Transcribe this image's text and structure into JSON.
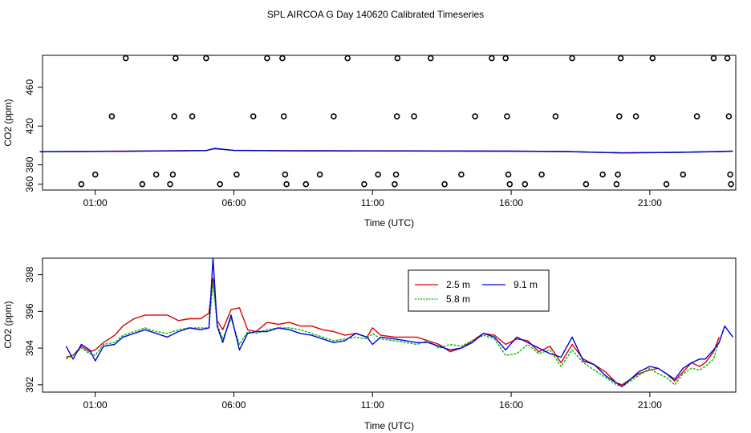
{
  "title": "SPL AIRCOA G  Day 140620  Calibrated Timeseries",
  "colors": {
    "red": "#dd0000",
    "green": "#00bb00",
    "blue": "#0000dd",
    "markers": "#000000"
  },
  "chart_data": [
    {
      "type": "scatter",
      "xlabel": "Time (UTC)",
      "ylabel": "CO2 (ppm)",
      "xlim": [
        -0.9,
        24.1
      ],
      "ylim": [
        354,
        493
      ],
      "xticks": [
        {
          "value": 1,
          "label": "01:00"
        },
        {
          "value": 6,
          "label": "06:00"
        },
        {
          "value": 11,
          "label": "11:00"
        },
        {
          "value": 16,
          "label": "16:00"
        },
        {
          "value": 21,
          "label": "21:00"
        }
      ],
      "yticks": [
        {
          "value": 380,
          "label": "380"
        },
        {
          "value": 420,
          "label": "420"
        },
        {
          "value": 460,
          "label": "460"
        },
        {
          "value": 360,
          "label": "360"
        }
      ],
      "markers": [
        {
          "x": 0.5,
          "y": 360
        },
        {
          "x": 1.0,
          "y": 370
        },
        {
          "x": 1.6,
          "y": 430
        },
        {
          "x": 2.1,
          "y": 490
        },
        {
          "x": 2.7,
          "y": 360
        },
        {
          "x": 3.2,
          "y": 370
        },
        {
          "x": 3.7,
          "y": 360
        },
        {
          "x": 3.8,
          "y": 370
        },
        {
          "x": 3.85,
          "y": 430
        },
        {
          "x": 3.9,
          "y": 490
        },
        {
          "x": 4.5,
          "y": 430
        },
        {
          "x": 5.0,
          "y": 490
        },
        {
          "x": 5.5,
          "y": 360
        },
        {
          "x": 6.1,
          "y": 370
        },
        {
          "x": 6.7,
          "y": 430
        },
        {
          "x": 7.2,
          "y": 490
        },
        {
          "x": 7.75,
          "y": 490
        },
        {
          "x": 7.8,
          "y": 430
        },
        {
          "x": 7.85,
          "y": 370
        },
        {
          "x": 7.9,
          "y": 360
        },
        {
          "x": 8.6,
          "y": 360
        },
        {
          "x": 9.1,
          "y": 370
        },
        {
          "x": 9.6,
          "y": 430
        },
        {
          "x": 10.1,
          "y": 490
        },
        {
          "x": 10.7,
          "y": 360
        },
        {
          "x": 11.2,
          "y": 370
        },
        {
          "x": 11.8,
          "y": 360
        },
        {
          "x": 11.85,
          "y": 370
        },
        {
          "x": 11.88,
          "y": 430
        },
        {
          "x": 11.9,
          "y": 490
        },
        {
          "x": 12.5,
          "y": 430
        },
        {
          "x": 13.1,
          "y": 490
        },
        {
          "x": 13.6,
          "y": 360
        },
        {
          "x": 14.2,
          "y": 370
        },
        {
          "x": 14.7,
          "y": 430
        },
        {
          "x": 15.3,
          "y": 490
        },
        {
          "x": 15.8,
          "y": 490
        },
        {
          "x": 15.85,
          "y": 430
        },
        {
          "x": 15.9,
          "y": 370
        },
        {
          "x": 15.95,
          "y": 360
        },
        {
          "x": 16.5,
          "y": 360
        },
        {
          "x": 17.1,
          "y": 370
        },
        {
          "x": 17.6,
          "y": 430
        },
        {
          "x": 18.2,
          "y": 490
        },
        {
          "x": 18.7,
          "y": 360
        },
        {
          "x": 19.3,
          "y": 370
        },
        {
          "x": 19.8,
          "y": 360
        },
        {
          "x": 19.85,
          "y": 370
        },
        {
          "x": 19.9,
          "y": 430
        },
        {
          "x": 19.95,
          "y": 490
        },
        {
          "x": 20.5,
          "y": 430
        },
        {
          "x": 21.1,
          "y": 490
        },
        {
          "x": 21.6,
          "y": 360
        },
        {
          "x": 22.2,
          "y": 370
        },
        {
          "x": 22.7,
          "y": 430
        },
        {
          "x": 23.3,
          "y": 490
        },
        {
          "x": 23.8,
          "y": 490
        },
        {
          "x": 23.85,
          "y": 430
        },
        {
          "x": 23.9,
          "y": 370
        },
        {
          "x": 23.93,
          "y": 360
        }
      ],
      "series": [
        {
          "color": "red",
          "x": [
            -1,
            2,
            4,
            5,
            5.3,
            6,
            8,
            12,
            16,
            18,
            20,
            22,
            23.5,
            24
          ],
          "y": [
            393.5,
            394.2,
            394.6,
            394.8,
            396.5,
            395.0,
            394.6,
            394.5,
            394.2,
            393.8,
            392.4,
            393.0,
            393.8,
            394.2
          ]
        },
        {
          "color": "green",
          "x": [
            -1,
            2,
            4,
            5,
            5.3,
            6,
            8,
            12,
            16,
            18,
            20,
            22,
            23.5,
            24
          ],
          "y": [
            393.4,
            394.0,
            394.4,
            394.6,
            396.8,
            394.8,
            394.4,
            394.2,
            394.0,
            393.6,
            392.2,
            392.8,
            393.6,
            394.0
          ]
        },
        {
          "color": "blue",
          "x": [
            -1,
            2,
            4,
            5,
            5.3,
            6,
            8,
            12,
            16,
            18,
            20,
            22,
            23.5,
            24
          ],
          "y": [
            393.6,
            394.0,
            394.5,
            394.7,
            397.0,
            394.9,
            394.5,
            394.3,
            394.1,
            393.7,
            392.3,
            392.9,
            393.7,
            394.1
          ]
        }
      ]
    },
    {
      "type": "line",
      "xlabel": "Time (UTC)",
      "ylabel": "CO2 (ppm)",
      "xlim": [
        -0.9,
        24.1
      ],
      "ylim": [
        391.6,
        398.9
      ],
      "xticks": [
        {
          "value": 1,
          "label": "01:00"
        },
        {
          "value": 6,
          "label": "06:00"
        },
        {
          "value": 11,
          "label": "11:00"
        },
        {
          "value": 16,
          "label": "16:00"
        },
        {
          "value": 21,
          "label": "21:00"
        }
      ],
      "yticks": [
        {
          "value": 392,
          "label": "392"
        },
        {
          "value": 394,
          "label": "394"
        },
        {
          "value": 396,
          "label": "396"
        },
        {
          "value": 398,
          "label": "398"
        }
      ],
      "legend": "top-right",
      "series": [
        {
          "name": "2.5 m",
          "color": "red",
          "x": [
            -0.05,
            0.2,
            0.5,
            0.8,
            1.0,
            1.3,
            1.7,
            2.0,
            2.4,
            2.8,
            3.2,
            3.6,
            4.0,
            4.4,
            4.8,
            5.1,
            5.25,
            5.4,
            5.6,
            5.9,
            6.2,
            6.5,
            6.8,
            7.2,
            7.6,
            8.0,
            8.4,
            8.8,
            9.2,
            9.6,
            10.0,
            10.4,
            10.8,
            11.0,
            11.3,
            11.8,
            12.2,
            12.6,
            13.0,
            13.4,
            13.8,
            14.2,
            14.6,
            15.0,
            15.4,
            15.8,
            16.2,
            16.6,
            17.0,
            17.4,
            17.8,
            18.2,
            18.6,
            19.0,
            19.4,
            19.8,
            20.0,
            20.3,
            20.6,
            21.0,
            21.3,
            21.6,
            21.9,
            22.2,
            22.5,
            22.8,
            23.0,
            23.3,
            23.5
          ],
          "y": [
            393.5,
            393.6,
            394.1,
            393.8,
            393.9,
            394.3,
            394.7,
            395.2,
            395.6,
            395.8,
            395.8,
            395.8,
            395.5,
            395.6,
            395.6,
            395.9,
            397.8,
            395.5,
            395.0,
            396.1,
            396.2,
            395.0,
            394.9,
            395.4,
            395.3,
            395.4,
            395.2,
            395.2,
            395.0,
            394.9,
            394.7,
            394.8,
            394.6,
            395.1,
            394.7,
            394.6,
            394.6,
            394.6,
            394.4,
            394.2,
            393.8,
            394.0,
            394.4,
            394.8,
            394.7,
            394.2,
            394.5,
            394.4,
            393.8,
            394.1,
            393.2,
            394.2,
            393.4,
            393.1,
            392.7,
            392.1,
            392.0,
            392.3,
            392.6,
            392.8,
            392.9,
            392.6,
            392.2,
            392.7,
            393.2,
            393.0,
            393.2,
            393.8,
            394.6
          ]
        },
        {
          "name": "5.8 m",
          "color": "green",
          "x": [
            -0.05,
            0.2,
            0.5,
            0.8,
            1.0,
            1.3,
            1.7,
            2.0,
            2.4,
            2.8,
            3.2,
            3.6,
            4.0,
            4.4,
            4.8,
            5.1,
            5.25,
            5.4,
            5.6,
            5.9,
            6.2,
            6.5,
            6.8,
            7.2,
            7.6,
            8.0,
            8.4,
            8.8,
            9.2,
            9.6,
            10.0,
            10.4,
            10.8,
            11.0,
            11.3,
            11.8,
            12.2,
            12.6,
            13.0,
            13.4,
            13.8,
            14.2,
            14.6,
            15.0,
            15.4,
            15.8,
            16.2,
            16.6,
            17.0,
            17.4,
            17.8,
            18.2,
            18.6,
            19.0,
            19.4,
            19.8,
            20.0,
            20.3,
            20.6,
            21.0,
            21.3,
            21.6,
            21.9,
            22.2,
            22.5,
            22.8,
            23.0,
            23.3,
            23.5
          ],
          "y": [
            393.4,
            393.6,
            394.0,
            393.7,
            393.6,
            394.2,
            394.3,
            394.7,
            394.9,
            395.1,
            394.9,
            394.8,
            395.0,
            395.1,
            395.1,
            395.1,
            397.6,
            395.3,
            394.5,
            395.6,
            394.2,
            394.9,
            394.8,
            395.0,
            395.1,
            395.1,
            395.0,
            394.8,
            394.6,
            394.4,
            394.5,
            394.6,
            394.5,
            394.8,
            394.5,
            394.4,
            394.3,
            394.2,
            394.4,
            394.0,
            394.2,
            394.1,
            394.4,
            394.7,
            394.5,
            393.6,
            393.7,
            394.2,
            393.7,
            393.9,
            393.0,
            393.9,
            393.2,
            392.8,
            392.4,
            392.0,
            391.9,
            392.2,
            392.5,
            392.9,
            392.6,
            392.4,
            392.0,
            392.6,
            392.9,
            392.8,
            393.0,
            393.4,
            394.4
          ]
        },
        {
          "name": "9.1 m",
          "color": "blue",
          "x": [
            -0.05,
            0.2,
            0.5,
            0.8,
            1.0,
            1.3,
            1.7,
            2.0,
            2.4,
            2.8,
            3.2,
            3.6,
            4.0,
            4.4,
            4.8,
            5.1,
            5.25,
            5.4,
            5.6,
            5.9,
            6.2,
            6.5,
            6.8,
            7.2,
            7.6,
            8.0,
            8.4,
            8.8,
            9.2,
            9.6,
            10.0,
            10.4,
            10.8,
            11.0,
            11.3,
            11.8,
            12.2,
            12.6,
            13.0,
            13.4,
            13.8,
            14.2,
            14.6,
            15.0,
            15.4,
            15.8,
            16.2,
            16.6,
            17.0,
            17.4,
            17.8,
            18.2,
            18.6,
            19.0,
            19.4,
            19.8,
            20.0,
            20.3,
            20.6,
            21.0,
            21.3,
            21.6,
            21.9,
            22.2,
            22.5,
            22.8,
            23.0,
            23.3,
            23.5,
            23.7,
            24.0
          ],
          "y": [
            394.1,
            393.4,
            394.2,
            393.9,
            393.3,
            394.1,
            394.2,
            394.6,
            394.8,
            395.0,
            394.8,
            394.6,
            394.9,
            395.1,
            395.0,
            395.1,
            398.9,
            395.2,
            394.3,
            395.8,
            393.9,
            394.8,
            394.9,
            394.9,
            395.1,
            395.0,
            394.8,
            394.7,
            394.5,
            394.3,
            394.4,
            394.8,
            394.6,
            394.2,
            394.6,
            394.5,
            394.4,
            394.3,
            394.3,
            394.1,
            393.9,
            394.0,
            394.3,
            394.8,
            394.6,
            393.9,
            394.6,
            394.3,
            394.0,
            393.7,
            393.5,
            394.6,
            393.3,
            393.1,
            392.5,
            392.1,
            391.9,
            392.3,
            392.7,
            393.0,
            392.9,
            392.6,
            392.3,
            392.9,
            393.2,
            393.4,
            393.4,
            393.9,
            394.3,
            395.2,
            394.6
          ]
        }
      ]
    }
  ]
}
